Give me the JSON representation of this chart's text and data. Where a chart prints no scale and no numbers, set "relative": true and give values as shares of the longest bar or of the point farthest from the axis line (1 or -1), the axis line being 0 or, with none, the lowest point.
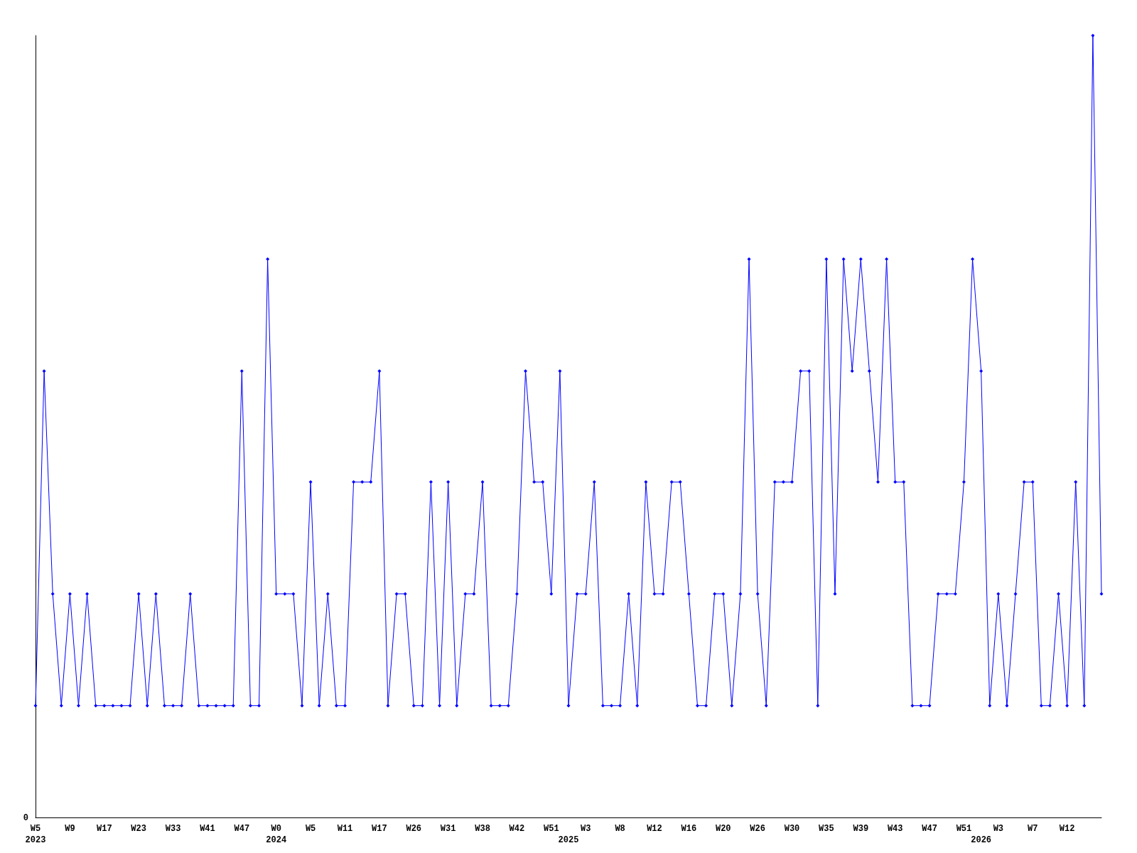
{
  "chart_data": {
    "type": "line",
    "relative": true,
    "color": "#0000ff",
    "marker": "diamond",
    "line_style": "solid",
    "grid": false,
    "annotations": [
      "0"
    ],
    "categories": [
      "W5\n2023",
      null,
      null,
      null,
      "W9",
      null,
      null,
      null,
      "W17",
      null,
      null,
      null,
      "W23",
      null,
      null,
      null,
      "W33",
      null,
      null,
      null,
      "W41",
      null,
      null,
      null,
      "W47",
      null,
      null,
      null,
      "W0\n2024",
      null,
      null,
      null,
      "W5",
      null,
      null,
      null,
      "W11",
      null,
      null,
      null,
      "W17",
      null,
      null,
      null,
      "W26",
      null,
      null,
      null,
      "W31",
      null,
      null,
      null,
      "W38",
      null,
      null,
      null,
      "W42",
      null,
      null,
      null,
      "W51",
      null,
      "\n2025",
      null,
      "W3",
      null,
      null,
      null,
      "W8",
      null,
      null,
      null,
      "W12",
      null,
      null,
      null,
      "W16",
      null,
      null,
      null,
      "W20",
      null,
      null,
      null,
      "W26",
      null,
      null,
      null,
      "W30",
      null,
      null,
      null,
      "W35",
      null,
      null,
      null,
      "W39",
      null,
      null,
      null,
      "W43",
      null,
      null,
      null,
      "W47",
      null,
      null,
      null,
      "W51",
      null,
      "\n2026",
      null,
      "W3",
      null,
      null,
      null,
      "W7",
      null,
      null,
      null,
      "W12",
      null,
      null,
      null,
      null
    ],
    "values": [
      0.143,
      0.571,
      0.286,
      0.143,
      0.286,
      0.143,
      0.286,
      0.143,
      0.143,
      0.143,
      0.143,
      0.143,
      0.286,
      0.143,
      0.286,
      0.143,
      0.143,
      0.143,
      0.286,
      0.143,
      0.143,
      0.143,
      0.143,
      0.143,
      0.571,
      0.143,
      0.143,
      0.714,
      0.286,
      0.286,
      0.286,
      0.143,
      0.429,
      0.143,
      0.286,
      0.143,
      0.143,
      0.429,
      0.429,
      0.429,
      0.571,
      0.143,
      0.286,
      0.286,
      0.143,
      0.143,
      0.429,
      0.143,
      0.429,
      0.143,
      0.286,
      0.286,
      0.429,
      0.143,
      0.143,
      0.143,
      0.286,
      0.571,
      0.429,
      0.429,
      0.286,
      0.571,
      0.143,
      0.286,
      0.286,
      0.429,
      0.143,
      0.143,
      0.143,
      0.286,
      0.143,
      0.429,
      0.286,
      0.286,
      0.429,
      0.429,
      0.286,
      0.143,
      0.143,
      0.286,
      0.286,
      0.143,
      0.286,
      0.714,
      0.286,
      0.143,
      0.429,
      0.429,
      0.429,
      0.571,
      0.571,
      0.143,
      0.714,
      0.286,
      0.714,
      0.571,
      0.714,
      0.571,
      0.429,
      0.714,
      0.429,
      0.429,
      0.143,
      0.143,
      0.143,
      0.286,
      0.286,
      0.286,
      0.429,
      0.714,
      0.571,
      0.143,
      0.286,
      0.143,
      0.286,
      0.429,
      0.429,
      0.143,
      0.143,
      0.286,
      0.143,
      0.429,
      0.143,
      1,
      0.286
    ]
  }
}
